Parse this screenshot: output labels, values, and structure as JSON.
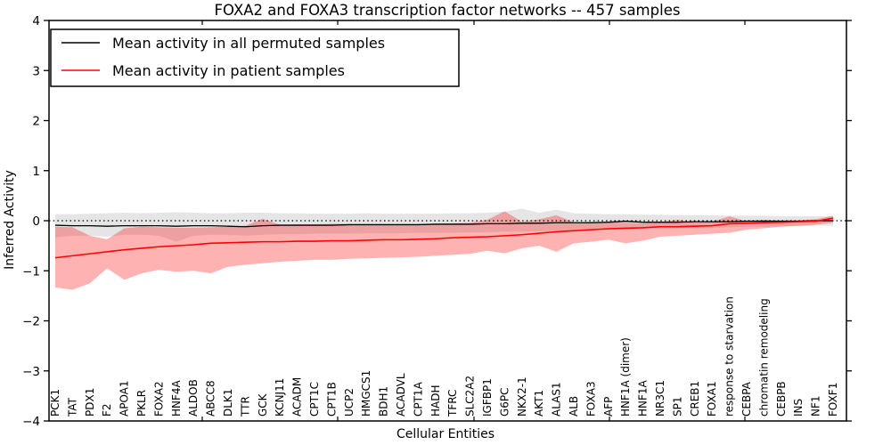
{
  "chart_data": {
    "type": "line",
    "title": "FOXA2 and FOXA3 transcription factor networks -- 457 samples",
    "xlabel": "Cellular Entities",
    "ylabel": "Inferred Activity",
    "ylim": [
      -4,
      4
    ],
    "grid": false,
    "legend_position": "upper left",
    "zero_line_style": "dotted",
    "yticks": [
      {
        "v": -4,
        "label": "−4"
      },
      {
        "v": -3,
        "label": "−3"
      },
      {
        "v": -2,
        "label": "−2"
      },
      {
        "v": -1,
        "label": "−1"
      },
      {
        "v": 0,
        "label": "0"
      },
      {
        "v": 1,
        "label": "1"
      },
      {
        "v": 2,
        "label": "2"
      },
      {
        "v": 3,
        "label": "3"
      },
      {
        "v": 4,
        "label": "4"
      }
    ],
    "categories": [
      "PCK1",
      "TAT",
      "PDX1",
      "F2",
      "APOA1",
      "PKLR",
      "FOXA2",
      "HNF4A",
      "ALDOB",
      "ABCC8",
      "DLK1",
      "TTR",
      "GCK",
      "KCNJ11",
      "ACADM",
      "CPT1C",
      "CPT1B",
      "UCP2",
      "HMGCS1",
      "BDH1",
      "ACADVL",
      "CPT1A",
      "HADH",
      "TFRC",
      "SLC2A2",
      "IGFBP1",
      "G6PC",
      "NKX2-1",
      "AKT1",
      "ALAS1",
      "ALB",
      "FOXA3",
      "AFP",
      "HNF1A (dimer)",
      "HNF1A",
      "NR3C1",
      "SP1",
      "CREB1",
      "FOXA1",
      "response to starvation",
      "CEBPA",
      "chromatin remodeling",
      "CEBPB",
      "INS",
      "NF1",
      "FOXF1"
    ],
    "series": [
      {
        "name": "Mean activity in all permuted samples",
        "color": "#000000",
        "values": [
          -0.09,
          -0.1,
          -0.1,
          -0.11,
          -0.1,
          -0.1,
          -0.1,
          -0.11,
          -0.1,
          -0.1,
          -0.11,
          -0.12,
          -0.1,
          -0.09,
          -0.09,
          -0.09,
          -0.09,
          -0.08,
          -0.08,
          -0.08,
          -0.08,
          -0.08,
          -0.07,
          -0.07,
          -0.07,
          -0.06,
          -0.06,
          -0.05,
          -0.05,
          -0.04,
          -0.04,
          -0.04,
          -0.03,
          -0.01,
          -0.03,
          -0.03,
          -0.03,
          -0.02,
          -0.02,
          -0.02,
          -0.01,
          -0.01,
          -0.01,
          -0.01,
          0.0,
          0.0
        ]
      },
      {
        "name": "Mean activity in patient samples",
        "color": "#ff0000",
        "values": [
          -0.74,
          -0.7,
          -0.66,
          -0.62,
          -0.58,
          -0.55,
          -0.52,
          -0.5,
          -0.48,
          -0.45,
          -0.44,
          -0.43,
          -0.42,
          -0.42,
          -0.41,
          -0.41,
          -0.4,
          -0.4,
          -0.39,
          -0.38,
          -0.38,
          -0.37,
          -0.36,
          -0.34,
          -0.33,
          -0.32,
          -0.3,
          -0.28,
          -0.25,
          -0.22,
          -0.2,
          -0.18,
          -0.16,
          -0.15,
          -0.14,
          -0.12,
          -0.12,
          -0.11,
          -0.1,
          -0.06,
          -0.05,
          -0.04,
          -0.03,
          -0.02,
          -0.01,
          0.05
        ]
      }
    ],
    "bands": [
      {
        "name": "permuted-confidence-band",
        "color": "rgba(0,0,0,0.10)",
        "upper": [
          0.13,
          0.13,
          0.14,
          0.15,
          0.16,
          0.15,
          0.16,
          0.17,
          0.16,
          0.15,
          0.15,
          0.16,
          0.16,
          0.15,
          0.15,
          0.14,
          0.14,
          0.14,
          0.15,
          0.14,
          0.14,
          0.14,
          0.14,
          0.15,
          0.15,
          0.16,
          0.18,
          0.24,
          0.16,
          0.22,
          0.15,
          0.14,
          0.13,
          0.13,
          0.12,
          0.12,
          0.11,
          0.11,
          0.11,
          0.1,
          0.1,
          0.1,
          0.09,
          0.09,
          0.09,
          0.09
        ],
        "lower": [
          -0.33,
          -0.3,
          -0.3,
          -0.32,
          -0.28,
          -0.28,
          -0.3,
          -0.42,
          -0.3,
          -0.28,
          -0.28,
          -0.3,
          -0.28,
          -0.27,
          -0.27,
          -0.26,
          -0.26,
          -0.26,
          -0.25,
          -0.25,
          -0.25,
          -0.24,
          -0.24,
          -0.24,
          -0.23,
          -0.23,
          -0.22,
          -0.22,
          -0.21,
          -0.2,
          -0.2,
          -0.19,
          -0.18,
          -0.17,
          -0.16,
          -0.16,
          -0.15,
          -0.14,
          -0.14,
          -0.13,
          -0.12,
          -0.12,
          -0.11,
          -0.11,
          -0.1,
          -0.1
        ]
      },
      {
        "name": "patient-confidence-band",
        "color": "rgba(255,0,0,0.30)",
        "upper": [
          -0.12,
          -0.13,
          -0.3,
          -0.37,
          -0.15,
          -0.12,
          -0.13,
          -0.14,
          -0.14,
          -0.13,
          -0.12,
          -0.1,
          0.04,
          -0.08,
          -0.07,
          -0.07,
          -0.06,
          -0.06,
          -0.06,
          -0.06,
          -0.06,
          -0.06,
          -0.06,
          -0.05,
          -0.04,
          0.02,
          0.19,
          -0.02,
          0.03,
          0.11,
          -0.03,
          -0.02,
          -0.03,
          -0.04,
          -0.05,
          -0.03,
          0.02,
          -0.04,
          -0.02,
          0.09,
          -0.01,
          0.02,
          0.0,
          0.01,
          0.03,
          0.1
        ],
        "lower": [
          -1.33,
          -1.38,
          -1.25,
          -0.95,
          -1.18,
          -1.05,
          -0.98,
          -1.02,
          -1.0,
          -1.05,
          -0.92,
          -0.88,
          -0.85,
          -0.82,
          -0.8,
          -0.78,
          -0.78,
          -0.76,
          -0.75,
          -0.74,
          -0.73,
          -0.72,
          -0.7,
          -0.68,
          -0.66,
          -0.6,
          -0.65,
          -0.55,
          -0.5,
          -0.62,
          -0.45,
          -0.42,
          -0.38,
          -0.45,
          -0.4,
          -0.32,
          -0.3,
          -0.28,
          -0.26,
          -0.24,
          -0.18,
          -0.15,
          -0.12,
          -0.1,
          -0.08,
          -0.04
        ]
      }
    ]
  },
  "legend": {
    "items": [
      {
        "label": "Mean activity in all permuted samples",
        "color": "#000000"
      },
      {
        "label": "Mean activity in patient samples",
        "color": "#ff0000"
      }
    ]
  }
}
